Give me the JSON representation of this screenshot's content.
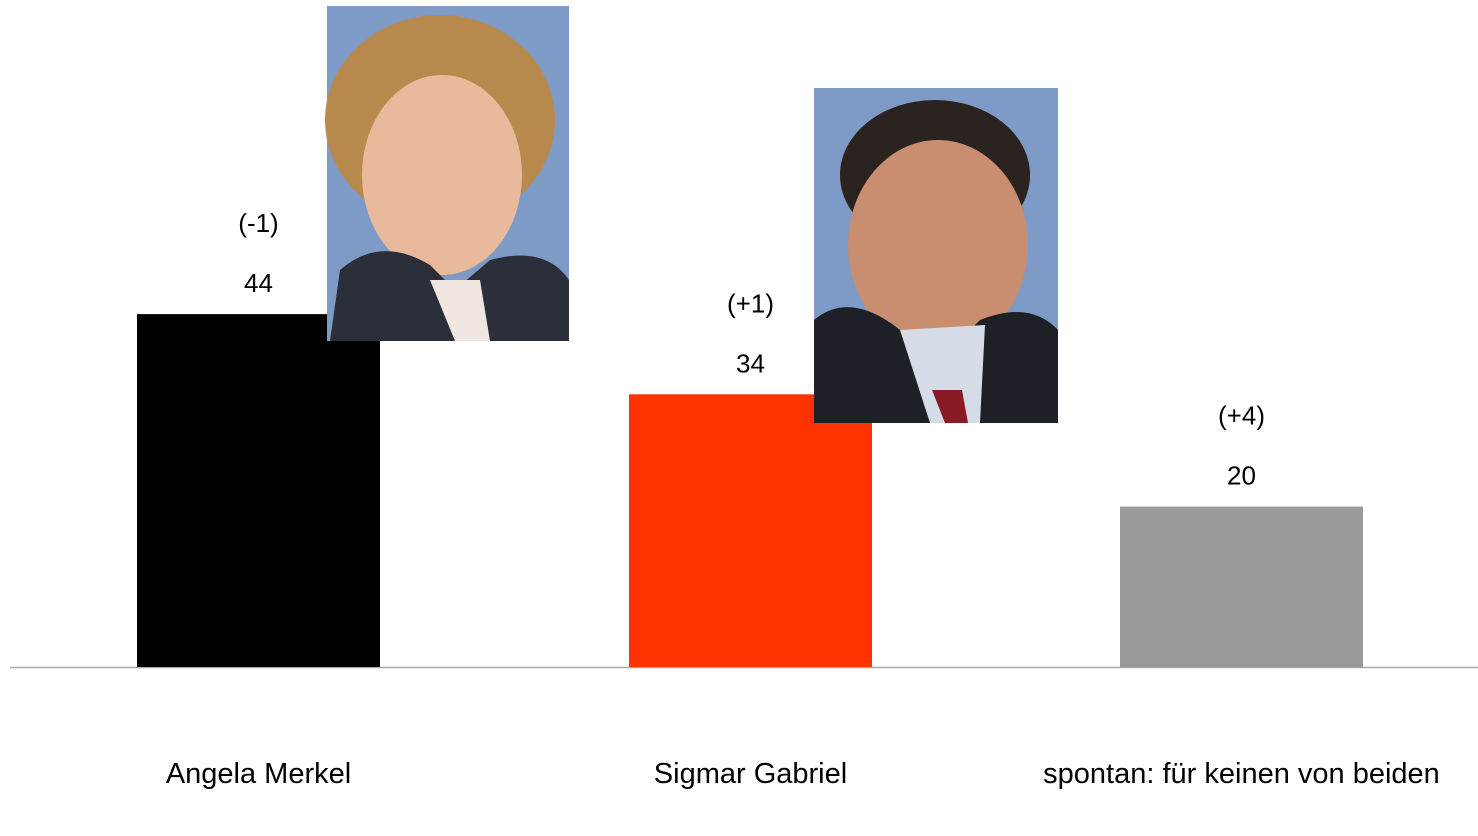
{
  "chart_data": {
    "type": "bar",
    "categories": [
      "Angela Merkel",
      "Sigmar Gabriel",
      "spontan: für keinen von beiden"
    ],
    "values": [
      44,
      34,
      20
    ],
    "changes": [
      "(-1)",
      "(+1)",
      "(+4)"
    ],
    "colors": [
      "#000000",
      "#ff3300",
      "#999999"
    ]
  }
}
